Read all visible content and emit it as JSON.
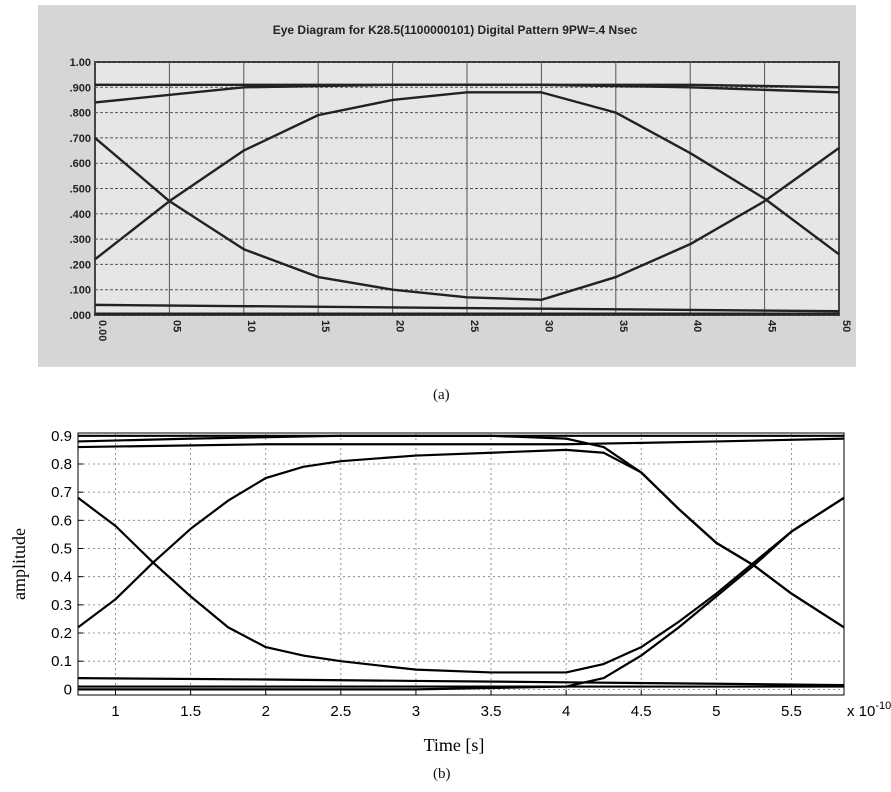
{
  "figure_a": {
    "caption": "(a)",
    "chart_data": {
      "type": "line",
      "title": "Eye Diagram for K28.5(1100000101) Digital Pattern   9PW=.4 Nsec",
      "xlim": [
        0,
        50
      ],
      "ylim": [
        0,
        1.0
      ],
      "x_tick_labels": [
        "0.00",
        "05",
        "10",
        "15",
        "20",
        "25",
        "30",
        "35",
        "40",
        "45",
        "50"
      ],
      "y_tick_labels": [
        ".000",
        ".100",
        ".200",
        ".300",
        ".400",
        ".500",
        ".600",
        ".700",
        ".800",
        ".900",
        "1.00"
      ],
      "grid": true,
      "series": [
        {
          "x": [
            0,
            5,
            10,
            15,
            20,
            25,
            30,
            35,
            40,
            45,
            50
          ],
          "y": [
            0.22,
            0.45,
            0.65,
            0.79,
            0.85,
            0.88,
            0.88,
            0.8,
            0.64,
            0.46,
            0.24
          ]
        },
        {
          "x": [
            0,
            5,
            10,
            15,
            20,
            25,
            30,
            35,
            40,
            45,
            50
          ],
          "y": [
            0.7,
            0.45,
            0.26,
            0.15,
            0.1,
            0.07,
            0.06,
            0.15,
            0.28,
            0.45,
            0.66
          ]
        },
        {
          "x": [
            0,
            10,
            20,
            30,
            40,
            50
          ],
          "y": [
            0.91,
            0.91,
            0.91,
            0.91,
            0.91,
            0.9
          ]
        },
        {
          "x": [
            0,
            10,
            20,
            30,
            40,
            50
          ],
          "y": [
            0.84,
            0.9,
            0.91,
            0.91,
            0.9,
            0.88
          ]
        },
        {
          "x": [
            0,
            10,
            20,
            30,
            40,
            50
          ],
          "y": [
            0.04,
            0.035,
            0.03,
            0.025,
            0.02,
            0.015
          ]
        },
        {
          "x": [
            0,
            10,
            20,
            30,
            40,
            50
          ],
          "y": [
            0.005,
            0.005,
            0.005,
            0.005,
            0.005,
            0.005
          ]
        }
      ]
    }
  },
  "figure_b": {
    "caption": "(b)",
    "chart_data": {
      "type": "line",
      "xlabel": "Time [s]",
      "ylabel": "amplitude",
      "x_multiplier_label": "x 10",
      "x_multiplier_exponent": "-10",
      "xlim": [
        0.75,
        5.85
      ],
      "ylim": [
        -0.02,
        0.91
      ],
      "x_tick_values": [
        1,
        1.5,
        2,
        2.5,
        3,
        3.5,
        4,
        4.5,
        5,
        5.5
      ],
      "x_tick_labels": [
        "1",
        "1.5",
        "2",
        "2.5",
        "3",
        "3.5",
        "4",
        "4.5",
        "5",
        "5.5"
      ],
      "y_tick_values": [
        0,
        0.1,
        0.2,
        0.3,
        0.4,
        0.5,
        0.6,
        0.7,
        0.8,
        0.9
      ],
      "y_tick_labels": [
        "0",
        "0.1",
        "0.2",
        "0.3",
        "0.4",
        "0.5",
        "0.6",
        "0.7",
        "0.8",
        "0.9"
      ],
      "grid": true,
      "series": [
        {
          "x": [
            0.75,
            1.0,
            1.25,
            1.5,
            1.75,
            2.0,
            2.25,
            2.5,
            3.0,
            3.5,
            4.0,
            4.25,
            4.5,
            4.75,
            5.0,
            5.25,
            5.5,
            5.85
          ],
          "y": [
            0.22,
            0.32,
            0.45,
            0.57,
            0.67,
            0.75,
            0.79,
            0.81,
            0.83,
            0.84,
            0.85,
            0.84,
            0.77,
            0.64,
            0.52,
            0.44,
            0.34,
            0.22
          ]
        },
        {
          "x": [
            0.75,
            1.0,
            1.25,
            1.5,
            1.75,
            2.0,
            2.25,
            2.5,
            3.0,
            3.5,
            4.0,
            4.25,
            4.5,
            4.75,
            5.0,
            5.25,
            5.5,
            5.85
          ],
          "y": [
            0.68,
            0.58,
            0.45,
            0.33,
            0.22,
            0.15,
            0.12,
            0.1,
            0.07,
            0.06,
            0.06,
            0.09,
            0.15,
            0.24,
            0.34,
            0.45,
            0.56,
            0.68
          ]
        },
        {
          "x": [
            0.75,
            1.5,
            2.5,
            3.5,
            4.0,
            4.25,
            4.5,
            4.75,
            5.0,
            5.25,
            5.5,
            5.85
          ],
          "y": [
            0.88,
            0.89,
            0.9,
            0.9,
            0.89,
            0.86,
            0.77,
            0.64,
            0.52,
            0.44,
            0.34,
            0.22
          ]
        },
        {
          "x": [
            0.75,
            2.0,
            3.0,
            4.0,
            5.0,
            5.85
          ],
          "y": [
            0.86,
            0.87,
            0.87,
            0.87,
            0.88,
            0.89
          ]
        },
        {
          "x": [
            0.75,
            2.0,
            3.0,
            4.0,
            5.0,
            5.85
          ],
          "y": [
            0.9,
            0.9,
            0.9,
            0.9,
            0.9,
            0.9
          ]
        },
        {
          "x": [
            0.75,
            2.0,
            3.0,
            4.0,
            4.25,
            4.5,
            4.75,
            5.0,
            5.25,
            5.5,
            5.85
          ],
          "y": [
            0.0,
            0.0,
            0.0,
            0.01,
            0.04,
            0.12,
            0.22,
            0.33,
            0.44,
            0.56,
            0.68
          ]
        },
        {
          "x": [
            0.75,
            2.0,
            3.0,
            4.0,
            5.0,
            5.85
          ],
          "y": [
            0.04,
            0.035,
            0.03,
            0.025,
            0.02,
            0.015
          ]
        },
        {
          "x": [
            0.75,
            3.0,
            5.85
          ],
          "y": [
            0.01,
            0.01,
            0.01
          ]
        }
      ]
    }
  }
}
